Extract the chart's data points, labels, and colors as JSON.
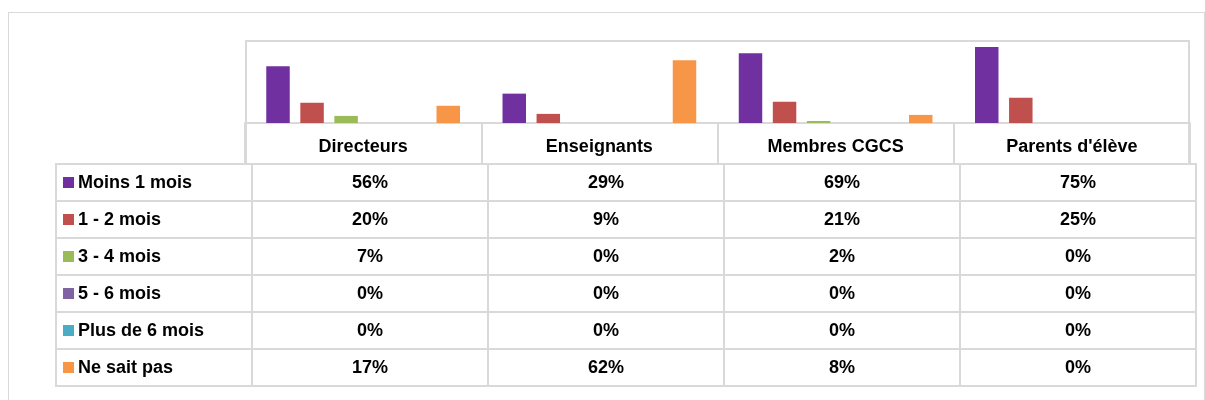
{
  "chart_data": {
    "type": "bar",
    "categories": [
      "Directeurs",
      "Enseignants",
      "Membres CGCS",
      "Parents d'élève"
    ],
    "ylim": [
      0,
      80
    ],
    "legend": "left",
    "series": [
      {
        "name": "Moins 1 mois",
        "color": "#7030a0",
        "values": [
          56,
          29,
          69,
          75
        ],
        "value_labels": [
          "56%",
          "29%",
          "69%",
          "75%"
        ]
      },
      {
        "name": "1 - 2 mois",
        "color": "#c0504d",
        "values": [
          20,
          9,
          21,
          25
        ],
        "value_labels": [
          "20%",
          "9%",
          "21%",
          "25%"
        ]
      },
      {
        "name": "3 - 4 mois",
        "color": "#9bbb59",
        "values": [
          7,
          0,
          2,
          0
        ],
        "value_labels": [
          "7%",
          "0%",
          "2%",
          "0%"
        ]
      },
      {
        "name": "5 - 6 mois",
        "color": "#8064a2",
        "values": [
          0,
          0,
          0,
          0
        ],
        "value_labels": [
          "0%",
          "0%",
          "0%",
          "0%"
        ]
      },
      {
        "name": "Plus de 6 mois",
        "color": "#4bacc6",
        "values": [
          0,
          0,
          0,
          0
        ],
        "value_labels": [
          "0%",
          "0%",
          "0%",
          "0%"
        ]
      },
      {
        "name": "Ne sait pas",
        "color": "#f79646",
        "values": [
          17,
          62,
          8,
          0
        ],
        "value_labels": [
          "17%",
          "62%",
          "8%",
          "0%"
        ]
      }
    ]
  }
}
